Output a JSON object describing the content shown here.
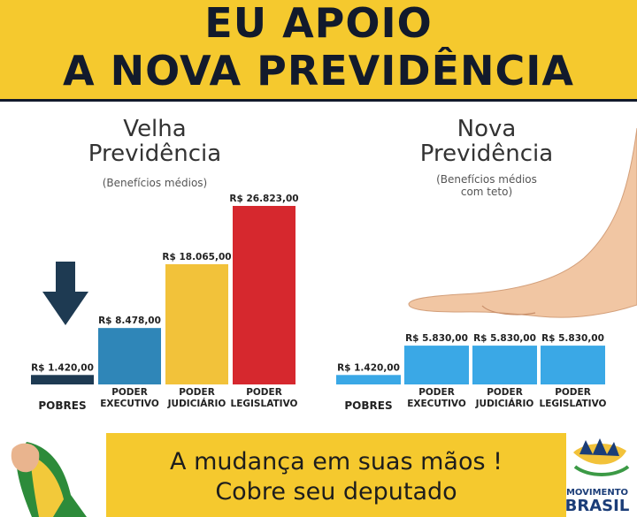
{
  "banner": {
    "line1": "EU APOIO",
    "line2": "A NOVA PREVIDÊNCIA",
    "background": "#f5c92e",
    "text_color": "#121a2c"
  },
  "chart_data": [
    {
      "type": "bar",
      "title": "Velha\nPrevidência",
      "subtitle": "(Benefícios médios)",
      "categories": [
        "POBRES",
        "PODER\nEXECUTIVO",
        "PODER\nJUDICIÁRIO",
        "PODER\nLEGISLATIVO"
      ],
      "values": [
        1420,
        8478,
        18065,
        26823
      ],
      "value_labels": [
        "R$ 1.420,00",
        "R$ 8.478,00",
        "R$ 18.065,00",
        "R$ 26.823,00"
      ],
      "colors": [
        "#1e3a52",
        "#2f86b8",
        "#f2c23a",
        "#d6282e"
      ],
      "ylim": [
        0,
        26823
      ],
      "grid": false,
      "annotations": [
        "down-arrow-over-pobres"
      ]
    },
    {
      "type": "bar",
      "title": "Nova\nPrevidência",
      "subtitle": "(Benefícios médios\ncom teto)",
      "categories": [
        "POBRES",
        "PODER\nEXECUTIVO",
        "PODER\nJUDICIÁRIO",
        "PODER\nLEGISLATIVO"
      ],
      "values": [
        1420,
        5830,
        5830,
        5830
      ],
      "value_labels": [
        "R$ 1.420,00",
        "R$ 5.830,00",
        "R$ 5.830,00",
        "R$ 5.830,00"
      ],
      "colors": [
        "#3aa8e6",
        "#3aa8e6",
        "#3aa8e6",
        "#3aa8e6"
      ],
      "ylim": [
        0,
        26823
      ],
      "grid": false,
      "annotations": [
        "flat-hand-over-bars"
      ]
    }
  ],
  "footer": {
    "line1": "A mudança em suas mãos !",
    "line2": "Cobre seu deputado",
    "logo_line1": "MOVIMENTO",
    "logo_line2": "BRASIL",
    "background": "#f5c92e"
  }
}
